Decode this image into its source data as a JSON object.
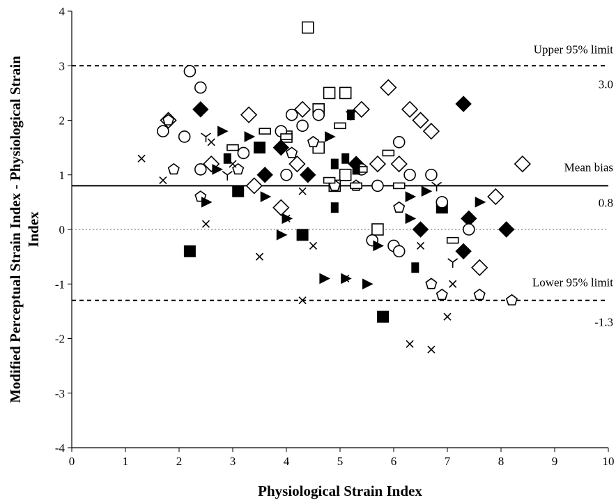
{
  "chart_data": {
    "type": "scatter",
    "title": "",
    "xlabel": "Physiological Strain Index",
    "ylabel_line1": "Modified Perceptual Strain Index - Physiological Strain",
    "ylabel_line2": "Index",
    "xlim": [
      0,
      10
    ],
    "ylim": [
      -4,
      4
    ],
    "xticks": [
      "0",
      "1",
      "2",
      "3",
      "4",
      "5",
      "6",
      "7",
      "8",
      "9",
      "10"
    ],
    "yticks": [
      "-4",
      "-3",
      "-2",
      "-1",
      "0",
      "1",
      "2",
      "3",
      "4"
    ],
    "grid": false,
    "reference_lines": {
      "upper": {
        "y": 3.0,
        "label": "Upper 95% limit",
        "value_label": "3.0",
        "style": "dashed"
      },
      "mean": {
        "y": 0.8,
        "label": "Mean bias",
        "value_label": "0.8",
        "style": "solid"
      },
      "lower": {
        "y": -1.3,
        "label": "Lower 95% limit",
        "value_label": "-1.3",
        "style": "dashed"
      },
      "zero": {
        "y": 0,
        "style": "dotted",
        "color": "#999999"
      }
    },
    "series": [
      {
        "marker": "open-square",
        "points": [
          [
            4.4,
            3.7
          ],
          [
            4.8,
            2.5
          ],
          [
            5.1,
            2.5
          ],
          [
            4.6,
            1.5
          ],
          [
            5.1,
            1.0
          ],
          [
            4.9,
            0.8
          ],
          [
            4.0,
            1.7
          ],
          [
            5.7,
            0.0
          ],
          [
            4.6,
            2.2
          ]
        ]
      },
      {
        "marker": "filled-square",
        "points": [
          [
            2.2,
            -0.4
          ],
          [
            3.1,
            0.7
          ],
          [
            3.5,
            1.5
          ],
          [
            4.3,
            -0.1
          ],
          [
            5.8,
            -1.6
          ],
          [
            6.9,
            0.4
          ]
        ]
      },
      {
        "marker": "open-diamond",
        "points": [
          [
            3.3,
            2.1
          ],
          [
            4.3,
            2.2
          ],
          [
            5.4,
            2.2
          ],
          [
            5.9,
            2.6
          ],
          [
            6.3,
            2.2
          ],
          [
            6.5,
            2.0
          ],
          [
            6.7,
            1.8
          ],
          [
            3.4,
            0.8
          ],
          [
            3.9,
            0.4
          ],
          [
            4.2,
            1.2
          ],
          [
            5.7,
            1.2
          ],
          [
            6.1,
            1.2
          ],
          [
            7.6,
            -0.7
          ],
          [
            7.9,
            0.6
          ],
          [
            8.4,
            1.2
          ],
          [
            2.6,
            1.2
          ],
          [
            1.8,
            2.0
          ]
        ]
      },
      {
        "marker": "filled-diamond",
        "points": [
          [
            2.4,
            2.2
          ],
          [
            3.6,
            1.0
          ],
          [
            3.9,
            1.5
          ],
          [
            4.4,
            1.0
          ],
          [
            5.3,
            1.2
          ],
          [
            6.5,
            0.0
          ],
          [
            7.3,
            2.3
          ],
          [
            7.4,
            0.2
          ],
          [
            7.3,
            -0.4
          ],
          [
            8.1,
            0.0
          ]
        ]
      },
      {
        "marker": "open-circle",
        "points": [
          [
            2.2,
            2.9
          ],
          [
            2.4,
            2.6
          ],
          [
            1.7,
            1.8
          ],
          [
            2.1,
            1.7
          ],
          [
            2.4,
            1.1
          ],
          [
            3.2,
            1.4
          ],
          [
            4.1,
            2.1
          ],
          [
            4.3,
            1.9
          ],
          [
            3.9,
            1.8
          ],
          [
            4.0,
            1.0
          ],
          [
            4.6,
            2.1
          ],
          [
            5.4,
            1.1
          ],
          [
            5.7,
            0.8
          ],
          [
            5.6,
            -0.2
          ],
          [
            6.0,
            -0.3
          ],
          [
            6.1,
            1.6
          ],
          [
            6.3,
            1.0
          ],
          [
            6.7,
            1.0
          ],
          [
            6.9,
            0.5
          ],
          [
            7.4,
            0.0
          ],
          [
            6.1,
            -0.4
          ]
        ]
      },
      {
        "marker": "open-pentagon",
        "points": [
          [
            1.8,
            2.0
          ],
          [
            1.9,
            1.1
          ],
          [
            3.1,
            1.1
          ],
          [
            2.4,
            0.6
          ],
          [
            4.1,
            1.4
          ],
          [
            4.5,
            1.6
          ],
          [
            4.9,
            0.8
          ],
          [
            5.3,
            0.8
          ],
          [
            6.1,
            0.4
          ],
          [
            6.7,
            -1.0
          ],
          [
            6.9,
            -1.2
          ],
          [
            7.6,
            -1.2
          ],
          [
            8.2,
            -1.3
          ]
        ]
      },
      {
        "marker": "filled-triangle-right",
        "points": [
          [
            2.8,
            1.8
          ],
          [
            3.3,
            1.7
          ],
          [
            2.7,
            1.1
          ],
          [
            2.5,
            0.5
          ],
          [
            3.6,
            0.6
          ],
          [
            4.0,
            0.2
          ],
          [
            3.9,
            -0.1
          ],
          [
            4.8,
            1.7
          ],
          [
            4.7,
            -0.9
          ],
          [
            5.1,
            -0.9
          ],
          [
            5.5,
            -1.0
          ],
          [
            5.7,
            -0.3
          ],
          [
            6.3,
            0.2
          ],
          [
            6.3,
            0.6
          ],
          [
            6.6,
            0.7
          ],
          [
            7.6,
            0.5
          ]
        ]
      },
      {
        "marker": "open-rect",
        "points": [
          [
            3.6,
            1.8
          ],
          [
            3.0,
            1.5
          ],
          [
            4.0,
            1.7
          ],
          [
            4.8,
            0.9
          ],
          [
            5.0,
            1.9
          ],
          [
            5.3,
            0.8
          ],
          [
            5.9,
            1.4
          ],
          [
            6.1,
            0.8
          ],
          [
            7.1,
            -0.2
          ],
          [
            5.4,
            1.1
          ]
        ]
      },
      {
        "marker": "filled-rect",
        "points": [
          [
            2.9,
            1.3
          ],
          [
            4.9,
            1.2
          ],
          [
            5.1,
            1.3
          ],
          [
            5.2,
            2.1
          ],
          [
            4.9,
            0.4
          ],
          [
            6.4,
            -0.7
          ],
          [
            5.3,
            1.1
          ]
        ]
      },
      {
        "marker": "x",
        "points": [
          [
            1.3,
            1.3
          ],
          [
            1.7,
            0.9
          ],
          [
            2.5,
            0.1
          ],
          [
            2.6,
            1.6
          ],
          [
            3.0,
            1.2
          ],
          [
            3.5,
            -0.5
          ],
          [
            4.3,
            0.7
          ],
          [
            4.5,
            -0.3
          ],
          [
            4.3,
            -1.3
          ],
          [
            5.1,
            -0.9
          ],
          [
            6.3,
            -2.1
          ],
          [
            6.7,
            -2.2
          ],
          [
            6.5,
            -0.3
          ],
          [
            7.0,
            -1.6
          ],
          [
            7.1,
            -1.0
          ],
          [
            4.0,
            0.2
          ]
        ]
      },
      {
        "marker": "tri-y",
        "points": [
          [
            2.5,
            1.7
          ],
          [
            2.9,
            1.0
          ],
          [
            7.1,
            -0.6
          ],
          [
            6.8,
            0.8
          ],
          [
            5.2,
            2.1
          ]
        ]
      }
    ]
  }
}
